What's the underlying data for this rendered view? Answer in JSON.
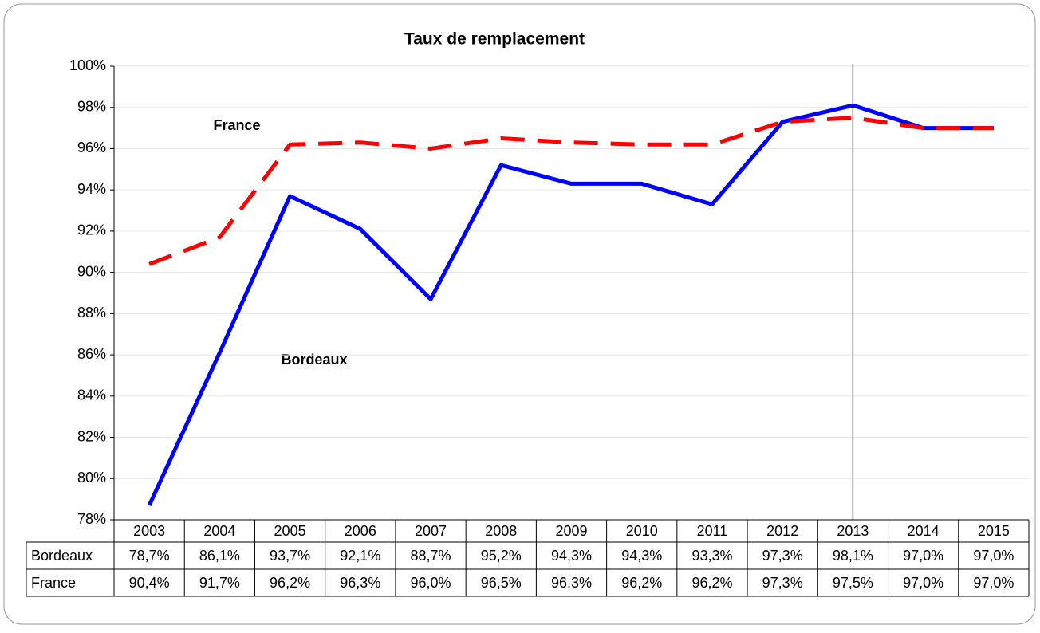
{
  "chart_data": {
    "type": "line",
    "title": "Taux de remplacement",
    "categories": [
      "2003",
      "2004",
      "2005",
      "2006",
      "2007",
      "2008",
      "2009",
      "2010",
      "2011",
      "2012",
      "2013",
      "2014",
      "2015"
    ],
    "series": [
      {
        "name": "Bordeaux",
        "color": "#0000ff",
        "values": [
          78.7,
          86.1,
          93.7,
          92.1,
          88.7,
          95.2,
          94.3,
          94.3,
          93.3,
          97.3,
          98.1,
          97.0,
          97.0
        ],
        "value_labels": [
          "78,7%",
          "86,1%",
          "93,7%",
          "92,1%",
          "88,7%",
          "95,2%",
          "94,3%",
          "94,3%",
          "93,3%",
          "97,3%",
          "98,1%",
          "97,0%",
          "97,0%"
        ]
      },
      {
        "name": "France",
        "color": "#ff0000",
        "values": [
          90.4,
          91.7,
          96.2,
          96.3,
          96.0,
          96.5,
          96.3,
          96.2,
          96.2,
          97.3,
          97.5,
          97.0,
          97.0
        ],
        "value_labels": [
          "90,4%",
          "91,7%",
          "96,2%",
          "96,3%",
          "96,0%",
          "96,5%",
          "96,3%",
          "96,2%",
          "96,2%",
          "97,3%",
          "97,5%",
          "97,0%",
          "97,0%"
        ]
      }
    ],
    "ylim": [
      78,
      100
    ],
    "yticks": [
      {
        "value": 78,
        "label": "78%"
      },
      {
        "value": 80,
        "label": "80%"
      },
      {
        "value": 82,
        "label": "82%"
      },
      {
        "value": 84,
        "label": "84%"
      },
      {
        "value": 86,
        "label": "86%"
      },
      {
        "value": 88,
        "label": "88%"
      },
      {
        "value": 90,
        "label": "90%"
      },
      {
        "value": 92,
        "label": "92%"
      },
      {
        "value": 94,
        "label": "94%"
      },
      {
        "value": 96,
        "label": "96%"
      },
      {
        "value": 98,
        "label": "98%"
      },
      {
        "value": 100,
        "label": "100%"
      }
    ],
    "grid": true
  }
}
